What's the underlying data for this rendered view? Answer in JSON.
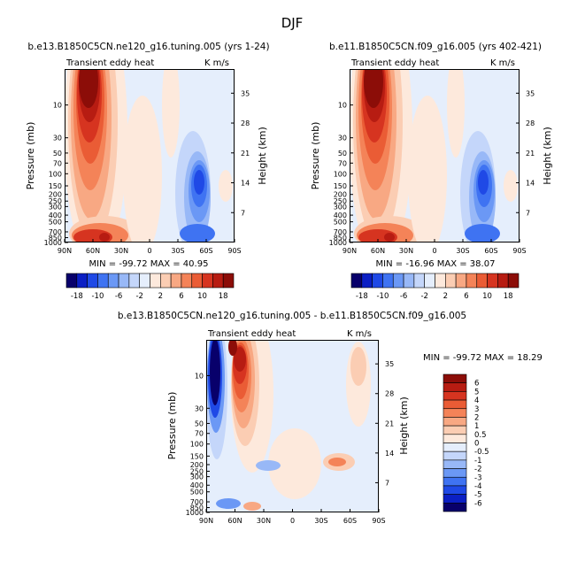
{
  "page_title": "DJF",
  "panels": {
    "a": {
      "case": "b.e13.B1850C5CN.ne120_g16.tuning.005 (yrs 1-24)",
      "variable": "Transient eddy heat",
      "units": "K m/s",
      "stats": "MIN = -99.72   MAX =  40.95"
    },
    "b": {
      "case": "b.e11.B1850C5CN.f09_g16.005 (yrs 402-421)",
      "variable": "Transient eddy heat",
      "units": "K m/s",
      "stats": "MIN = -16.96   MAX =  38.07"
    },
    "c": {
      "case": "b.e13.B1850C5CN.ne120_g16.tuning.005 - b.e11.B1850C5CN.f09_g16.005",
      "variable": "Transient eddy heat",
      "units": "K m/s",
      "stats": "MIN = -99.72   MAX =  18.29"
    }
  },
  "axes": {
    "ylabel_left": "Pressure (mb)",
    "ylabel_right": "Height (km)",
    "pressure_ticks": [
      "10",
      "30",
      "50",
      "70",
      "100",
      "150",
      "200",
      "250",
      "300",
      "400",
      "500",
      "700",
      "850",
      "1000"
    ],
    "height_ticks": [
      "7",
      "14",
      "21",
      "28",
      "35"
    ],
    "lat_ticks": [
      "90N",
      "60N",
      "30N",
      "0",
      "30S",
      "60S",
      "90S"
    ]
  },
  "colorbar_top": {
    "labels": [
      "-18",
      "-10",
      "-6",
      "-2",
      "2",
      "6",
      "10",
      "18"
    ],
    "colors": [
      "#08006b",
      "#0b1fc4",
      "#1f49e6",
      "#3f73f2",
      "#6b98f5",
      "#98b8f7",
      "#c4d6fa",
      "#e5eefc",
      "#fde9dc",
      "#fbcdb3",
      "#f8a883",
      "#f48358",
      "#ea5c35",
      "#d63420",
      "#b71c12",
      "#8c0d08"
    ]
  },
  "colorbar_diff": {
    "labels": [
      "6",
      "5",
      "4",
      "3",
      "2",
      "1",
      "0.5",
      "0",
      "-0.5",
      "-1",
      "-2",
      "-3",
      "-4",
      "-5",
      "-6"
    ],
    "colors": [
      "#8c0d08",
      "#b71c12",
      "#d63420",
      "#ea5c35",
      "#f48358",
      "#f8a883",
      "#fbcdb3",
      "#fde9dc",
      "#e5eefc",
      "#c4d6fa",
      "#98b8f7",
      "#6b98f5",
      "#3f73f2",
      "#1f49e6",
      "#0b1fc4",
      "#08006b"
    ]
  },
  "chart_data": [
    {
      "type": "heatmap",
      "title": "b.e13.B1850C5CN.ne120_g16.tuning.005 (yrs 1-24)",
      "xlabel": "",
      "ylabel": "Pressure (mb)",
      "x_range": [
        "90N",
        "90S"
      ],
      "y_range_mb": [
        1000,
        3
      ],
      "min": -99.72,
      "max": 40.95,
      "features": [
        {
          "lat": 62,
          "p_mb": 8,
          "value": 30
        },
        {
          "lat": 60,
          "p_mb": 850,
          "value": 18
        },
        {
          "lat": 40,
          "p_mb": 850,
          "value": 12
        },
        {
          "lat": -55,
          "p_mb": 200,
          "value": -18
        },
        {
          "lat": -50,
          "p_mb": 850,
          "value": -10
        }
      ]
    },
    {
      "type": "heatmap",
      "title": "b.e11.B1850C5CN.f09_g16.005 (yrs 402-421)",
      "xlabel": "",
      "ylabel": "Pressure (mb)",
      "x_range": [
        "90N",
        "90S"
      ],
      "y_range_mb": [
        1000,
        3
      ],
      "min": -16.96,
      "max": 38.07,
      "features": [
        {
          "lat": 65,
          "p_mb": 8,
          "value": 30
        },
        {
          "lat": 60,
          "p_mb": 850,
          "value": 18
        },
        {
          "lat": 40,
          "p_mb": 850,
          "value": 12
        },
        {
          "lat": -50,
          "p_mb": 200,
          "value": -14
        },
        {
          "lat": -50,
          "p_mb": 850,
          "value": -8
        }
      ]
    },
    {
      "type": "heatmap",
      "title": "b.e13.B1850C5CN.ne120_g16.tuning.005 - b.e11.B1850C5CN.f09_g16.005",
      "xlabel": "",
      "ylabel": "Pressure (mb)",
      "x_range": [
        "90N",
        "90S"
      ],
      "y_range_mb": [
        1000,
        3
      ],
      "min": -99.72,
      "max": 18.29,
      "features": [
        {
          "lat": 80,
          "p_mb": 10,
          "value": -6
        },
        {
          "lat": 62,
          "p_mb": 20,
          "value": 6
        },
        {
          "lat": 50,
          "p_mb": 20,
          "value": 3
        },
        {
          "lat": -50,
          "p_mb": 200,
          "value": 2
        },
        {
          "lat": -45,
          "p_mb": 10,
          "value": 1
        }
      ]
    }
  ]
}
